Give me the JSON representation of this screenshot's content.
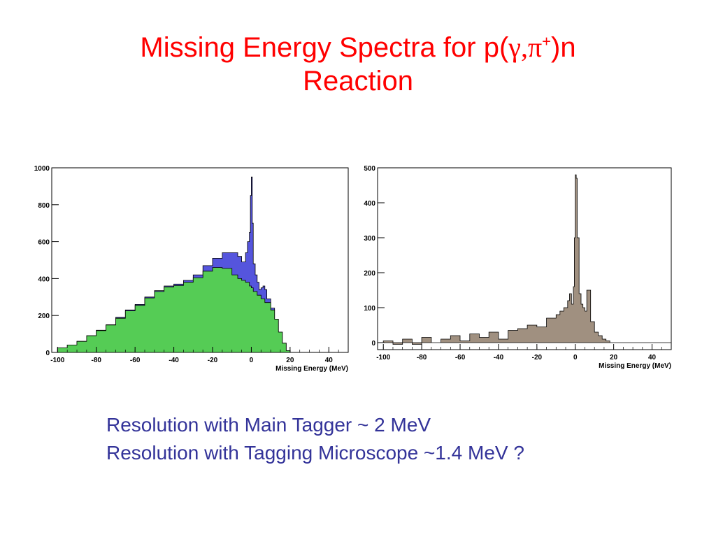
{
  "slide": {
    "title_main": "Missing Energy Spectra for p(",
    "title_gamma": "γ",
    "title_comma": ",",
    "title_pi": "π",
    "title_sup": "+",
    "title_end": ")n",
    "title_line2": "Reaction",
    "caption_line1": "Resolution with Main Tagger ~ 2 MeV",
    "caption_line2": "Resolution with Tagging Microscope ~1.4 MeV ?"
  },
  "chart_data": [
    {
      "type": "area",
      "xlabel": "Missing Energy (MeV)",
      "ylabel": "",
      "xlim": [
        -103,
        50
      ],
      "ylim": [
        0,
        1000
      ],
      "xticks": [
        "-100",
        "-80",
        "-60",
        "-40",
        "-20",
        "0",
        "20",
        "40"
      ],
      "yticks": [
        "0",
        "200",
        "400",
        "600",
        "800",
        "1000"
      ],
      "colors": {
        "main": "#5555dd",
        "sub": "#55cc55"
      },
      "series": [
        {
          "role": "main",
          "x": [
            -103,
            -100,
            -95,
            -90,
            -85,
            -80,
            -75,
            -70,
            -65,
            -60,
            -55,
            -50,
            -45,
            -40,
            -35,
            -30,
            -25,
            -20,
            -15,
            -10,
            -7,
            -5,
            -3,
            -2,
            -1,
            -0.5,
            0,
            0.5,
            1,
            2,
            3,
            4,
            5,
            6,
            7,
            8,
            10,
            12,
            14,
            16,
            18,
            20,
            50
          ],
          "y": [
            0,
            25,
            40,
            60,
            90,
            120,
            150,
            190,
            230,
            260,
            300,
            335,
            360,
            370,
            390,
            420,
            470,
            510,
            540,
            540,
            520,
            490,
            540,
            600,
            650,
            850,
            950,
            700,
            480,
            420,
            380,
            340,
            350,
            360,
            340,
            290,
            240,
            180,
            110,
            50,
            10,
            0,
            0
          ]
        },
        {
          "role": "sub",
          "x": [
            -103,
            -100,
            -95,
            -90,
            -85,
            -80,
            -75,
            -70,
            -65,
            -60,
            -55,
            -50,
            -45,
            -40,
            -35,
            -30,
            -25,
            -20,
            -15,
            -10,
            -7,
            -5,
            -3,
            -1,
            0,
            1,
            3,
            5,
            7,
            10,
            12,
            14,
            16,
            18,
            20,
            50
          ],
          "y": [
            0,
            25,
            40,
            60,
            90,
            118,
            148,
            185,
            225,
            255,
            295,
            330,
            355,
            362,
            380,
            405,
            440,
            460,
            455,
            420,
            400,
            390,
            380,
            360,
            350,
            330,
            310,
            290,
            270,
            230,
            180,
            110,
            50,
            10,
            0,
            0
          ]
        }
      ]
    },
    {
      "type": "area",
      "xlabel": "Missing Energy (MeV)",
      "ylabel": "",
      "xlim": [
        -103,
        50
      ],
      "ylim": [
        -20,
        500
      ],
      "xticks": [
        "-100",
        "-80",
        "-60",
        "-40",
        "-20",
        "0",
        "20",
        "40"
      ],
      "yticks": [
        "0",
        "100",
        "200",
        "300",
        "400",
        "500"
      ],
      "colors": {
        "fill": "#a09080"
      },
      "series": [
        {
          "x": [
            -103,
            -100,
            -95,
            -90,
            -85,
            -80,
            -75,
            -70,
            -65,
            -60,
            -55,
            -50,
            -45,
            -40,
            -35,
            -30,
            -25,
            -20,
            -15,
            -10,
            -8,
            -6,
            -4,
            -3,
            -2,
            -1,
            -0.5,
            0,
            0.5,
            1,
            2,
            3,
            4,
            5,
            6,
            8,
            10,
            12,
            14,
            16,
            18,
            20,
            50
          ],
          "y": [
            0,
            5,
            -5,
            10,
            -5,
            15,
            0,
            10,
            20,
            5,
            25,
            15,
            30,
            10,
            35,
            40,
            50,
            45,
            70,
            80,
            90,
            100,
            120,
            140,
            110,
            160,
            300,
            480,
            470,
            300,
            140,
            110,
            100,
            90,
            150,
            60,
            30,
            20,
            10,
            5,
            0,
            0,
            0
          ]
        }
      ]
    }
  ]
}
